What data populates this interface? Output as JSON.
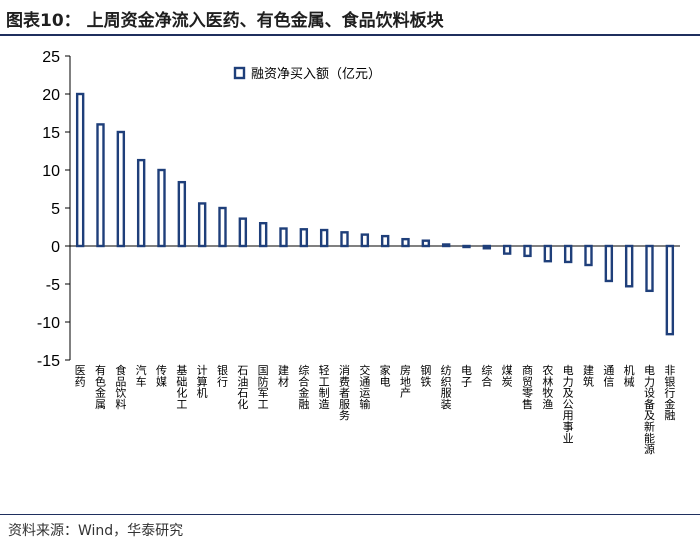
{
  "title": "图表10： 上周资金净流入医药、有色金属、食品饮料板块",
  "source": "资料来源：Wind，华泰研究",
  "colors": {
    "bar_border": "#1f3f7a",
    "bar_fill": "#ffffff",
    "axis": "#000000",
    "rule": "#1f2f5e"
  },
  "chart_data": {
    "type": "bar",
    "title": "图表10： 上周资金净流入医药、有色金属、食品饮料板块",
    "xlabel": "",
    "ylabel": "",
    "ylim": [
      -15,
      25
    ],
    "yticks": [
      25,
      20,
      15,
      10,
      5,
      0,
      -5,
      -10,
      -15
    ],
    "legend": "top-center",
    "grid": false,
    "series": [
      {
        "name": "融资净买入额（亿元）",
        "values": [
          20,
          16,
          15,
          11.3,
          10,
          8.4,
          5.6,
          5,
          3.6,
          3,
          2.3,
          2.2,
          2.1,
          1.8,
          1.5,
          1.3,
          0.9,
          0.7,
          0.2,
          -0.1,
          -0.3,
          -1,
          -1.3,
          -2,
          -2.1,
          -2.5,
          -4.6,
          -5.3,
          -5.9,
          -11.6
        ]
      }
    ],
    "categories": [
      "医药",
      "有色金属",
      "食品饮料",
      "汽车",
      "传媒",
      "基础化工",
      "计算机",
      "银行",
      "石油石化",
      "国防军工",
      "建材",
      "综合金融",
      "轻工制造",
      "消费者服务",
      "交通运输",
      "家电",
      "房地产",
      "钢铁",
      "纺织服装",
      "电子",
      "综合",
      "煤炭",
      "商贸零售",
      "农林牧渔",
      "电力及公用事业",
      "建筑",
      "通信",
      "机械",
      "电力设备及新能源",
      "非银行金融"
    ]
  }
}
